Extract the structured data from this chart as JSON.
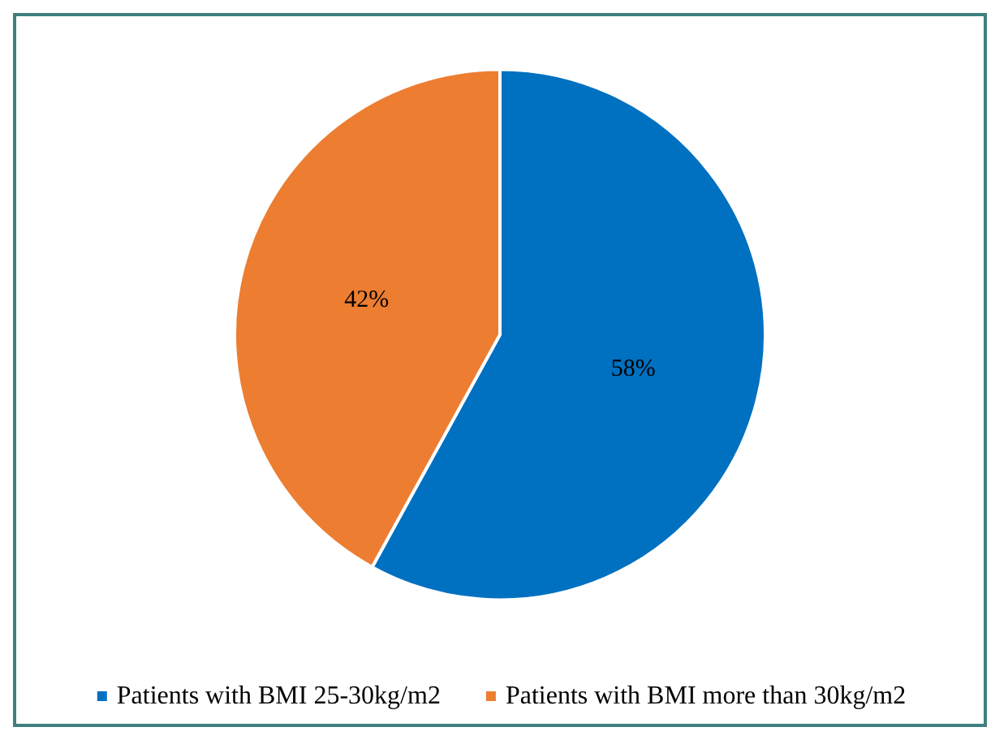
{
  "chart_data": {
    "type": "pie",
    "categories": [
      "Patients with BMI 25-30kg/m2",
      "Patients with BMI more than 30kg/m2"
    ],
    "values": [
      58,
      42
    ],
    "colors": [
      "#0070c0",
      "#ed7d31"
    ],
    "value_labels": [
      "58%",
      "42%"
    ],
    "legend": "bottom"
  }
}
